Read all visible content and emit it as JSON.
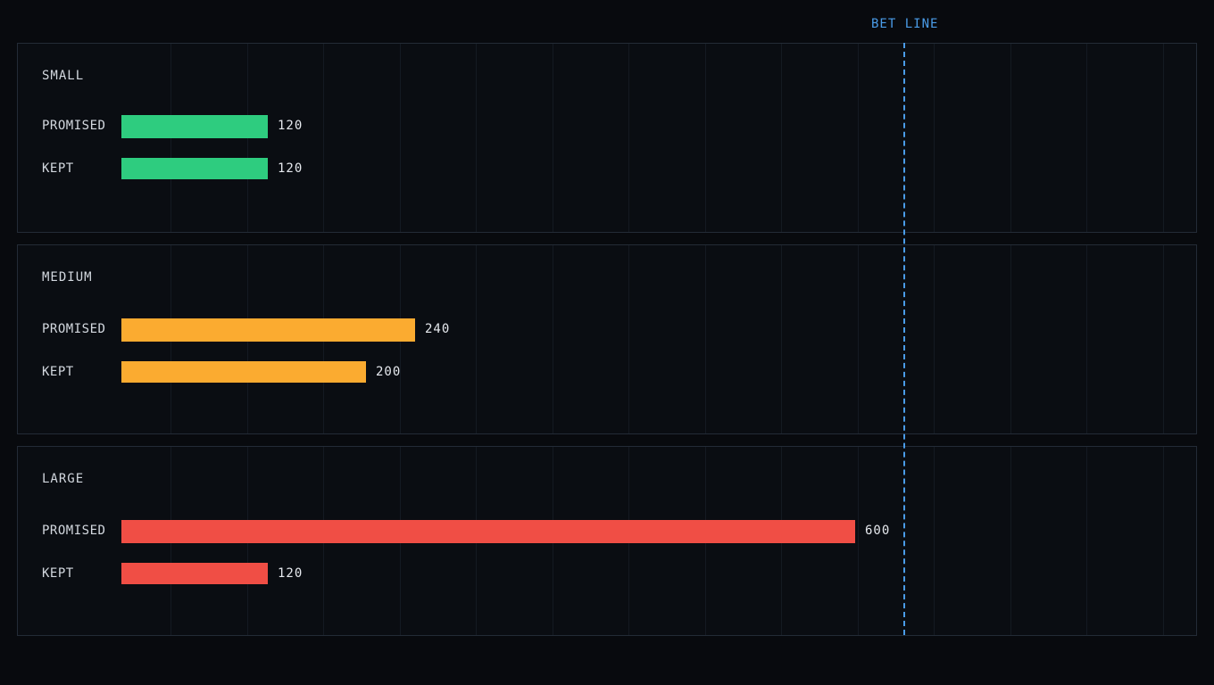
{
  "chart_data": {
    "type": "bar",
    "orientation": "horizontal",
    "title": "",
    "reference_line": {
      "label": "BET LINE",
      "value": 720,
      "color": "#4a9ce8"
    },
    "xlim": [
      0,
      960
    ],
    "grid": true,
    "rows": [
      "PROMISED",
      "KEPT"
    ],
    "groups": [
      {
        "name": "SMALL",
        "color": "#2ecc7f",
        "values": [
          120,
          120
        ]
      },
      {
        "name": "MEDIUM",
        "color": "#fbab30",
        "values": [
          240,
          200
        ]
      },
      {
        "name": "LARGE",
        "color": "#f04e45",
        "values": [
          600,
          120
        ]
      }
    ]
  }
}
